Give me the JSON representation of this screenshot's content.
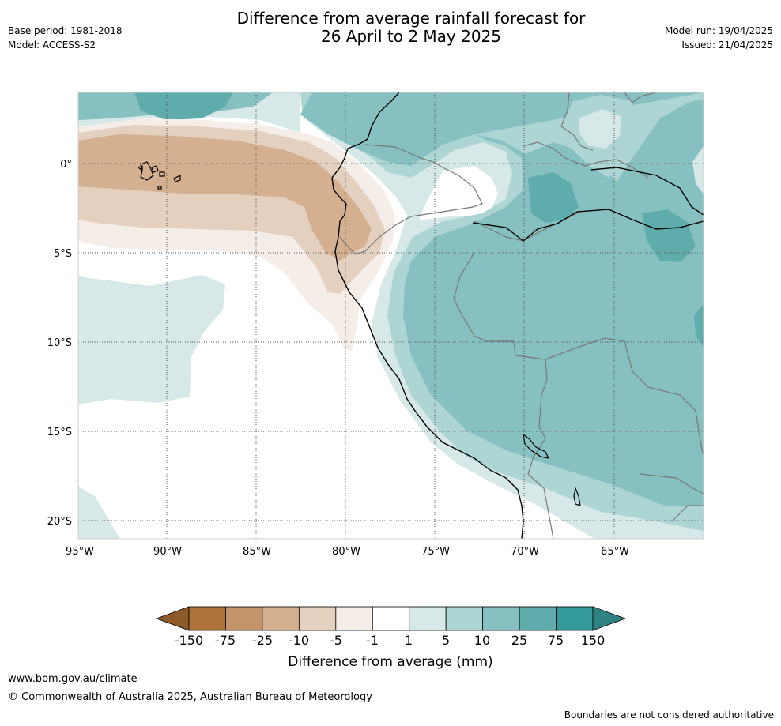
{
  "header": {
    "title_line1": "Difference from average rainfall forecast for",
    "title_line2": "26 April to 2 May 2025",
    "base_period": "Base period: 1981-2018",
    "model": "Model: ACCESS-S2",
    "model_run": "Model run: 19/04/2025",
    "issued": "Issued: 21/04/2025"
  },
  "map": {
    "lon_labels": [
      "95°W",
      "90°W",
      "85°W",
      "80°W",
      "75°W",
      "70°W",
      "65°W"
    ],
    "lat_labels": [
      "0°",
      "5°S",
      "10°S",
      "15°S",
      "20°S"
    ],
    "extent": {
      "lon_min": -95,
      "lon_max": -60,
      "lat_min": -21,
      "lat_max": 4
    },
    "grid": true,
    "gridline_style": "dotted"
  },
  "legend": {
    "title": "Difference from average (mm)",
    "ticks": [
      "-150",
      "-75",
      "-25",
      "-10",
      "-5",
      "-1",
      "1",
      "5",
      "10",
      "25",
      "75",
      "150"
    ],
    "colors": [
      "#8d5a2a",
      "#ad7338",
      "#c3946a",
      "#d4b091",
      "#e4d0bf",
      "#f4ede8",
      "#ffffff",
      "#d6e9e8",
      "#acd5d3",
      "#86c0c0",
      "#5eacac",
      "#33999a",
      "#2f8282"
    ]
  },
  "footer": {
    "url": "www.bom.gov.au/climate",
    "copyright": "© Commonwealth of Australia 2025, Australian Bureau of Meteorology",
    "disclaimer": "Boundaries are not considered authoritative"
  }
}
